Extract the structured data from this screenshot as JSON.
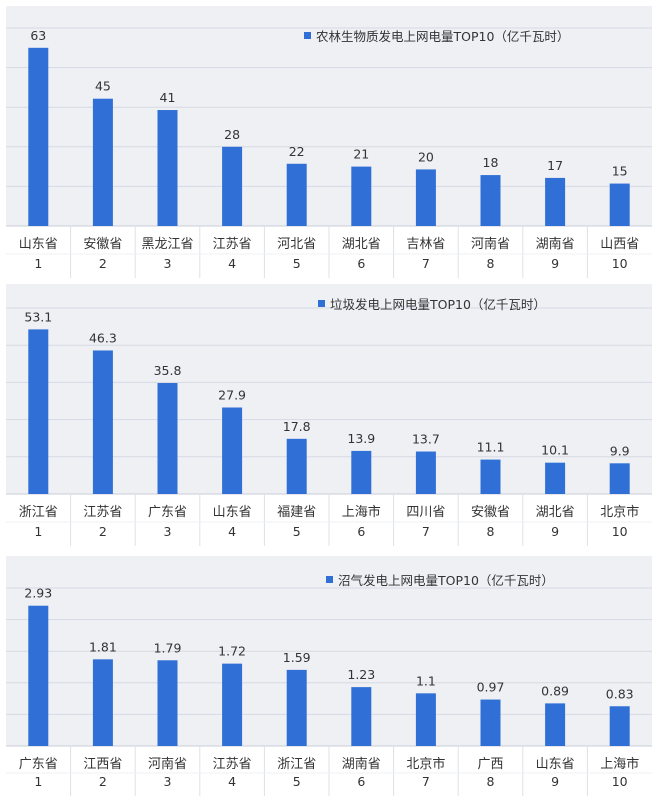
{
  "colors": {
    "bar": "#2f6fd6",
    "grid": "#d6dae2",
    "panel_bg": "#eef0f4",
    "text": "#333333"
  },
  "chart_data": [
    {
      "type": "bar",
      "title": "农林生物质发电上网电量TOP10（亿千瓦时）",
      "series": [
        {
          "name": "农林生物质发电上网电量TOP10（亿千瓦时）",
          "values": [
            63,
            45,
            41,
            28,
            22,
            21,
            20,
            18,
            17,
            15
          ]
        }
      ],
      "categories": [
        "山东省",
        "安徽省",
        "黑龙江省",
        "江苏省",
        "河北省",
        "湖北省",
        "吉林省",
        "河南省",
        "湖南省",
        "山西省"
      ],
      "ranks": [
        "1",
        "2",
        "3",
        "4",
        "5",
        "6",
        "7",
        "8",
        "9",
        "10"
      ],
      "value_labels": [
        "63",
        "45",
        "41",
        "28",
        "22",
        "21",
        "20",
        "18",
        "17",
        "15"
      ],
      "ylim": [
        0,
        70
      ],
      "grid": true,
      "legend_position": "top-right"
    },
    {
      "type": "bar",
      "title": "垃圾发电上网电量TOP10（亿千瓦时）",
      "series": [
        {
          "name": "垃圾发电上网电量TOP10（亿千瓦时）",
          "values": [
            53.1,
            46.3,
            35.8,
            27.9,
            17.8,
            13.9,
            13.7,
            11.1,
            10.1,
            9.9
          ]
        }
      ],
      "categories": [
        "浙江省",
        "江苏省",
        "广东省",
        "山东省",
        "福建省",
        "上海市",
        "四川省",
        "安徽省",
        "湖北省",
        "北京市"
      ],
      "ranks": [
        "1",
        "2",
        "3",
        "4",
        "5",
        "6",
        "7",
        "8",
        "9",
        "10"
      ],
      "value_labels": [
        "53.1",
        "46.3",
        "35.8",
        "27.9",
        "17.8",
        "13.9",
        "13.7",
        "11.1",
        "10.1",
        "9.9"
      ],
      "ylim": [
        0,
        60
      ],
      "grid": true,
      "legend_position": "top-center"
    },
    {
      "type": "bar",
      "title": "沼气发电上网电量TOP10（亿千瓦时）",
      "series": [
        {
          "name": "沼气发电上网电量TOP10（亿千瓦时）",
          "values": [
            2.93,
            1.81,
            1.79,
            1.72,
            1.59,
            1.23,
            1.1,
            0.97,
            0.89,
            0.83
          ]
        }
      ],
      "categories": [
        "广东省",
        "江西省",
        "河南省",
        "江苏省",
        "浙江省",
        "湖南省",
        "北京市",
        "广西",
        "山东省",
        "上海市"
      ],
      "ranks": [
        "1",
        "2",
        "3",
        "4",
        "5",
        "6",
        "7",
        "8",
        "9",
        "10"
      ],
      "value_labels": [
        "2.93",
        "1.81",
        "1.79",
        "1.72",
        "1.59",
        "1.23",
        "1.1",
        "0.97",
        "0.89",
        "0.83"
      ],
      "ylim": [
        0,
        3.3
      ],
      "grid": true,
      "legend_position": "top-center"
    }
  ]
}
